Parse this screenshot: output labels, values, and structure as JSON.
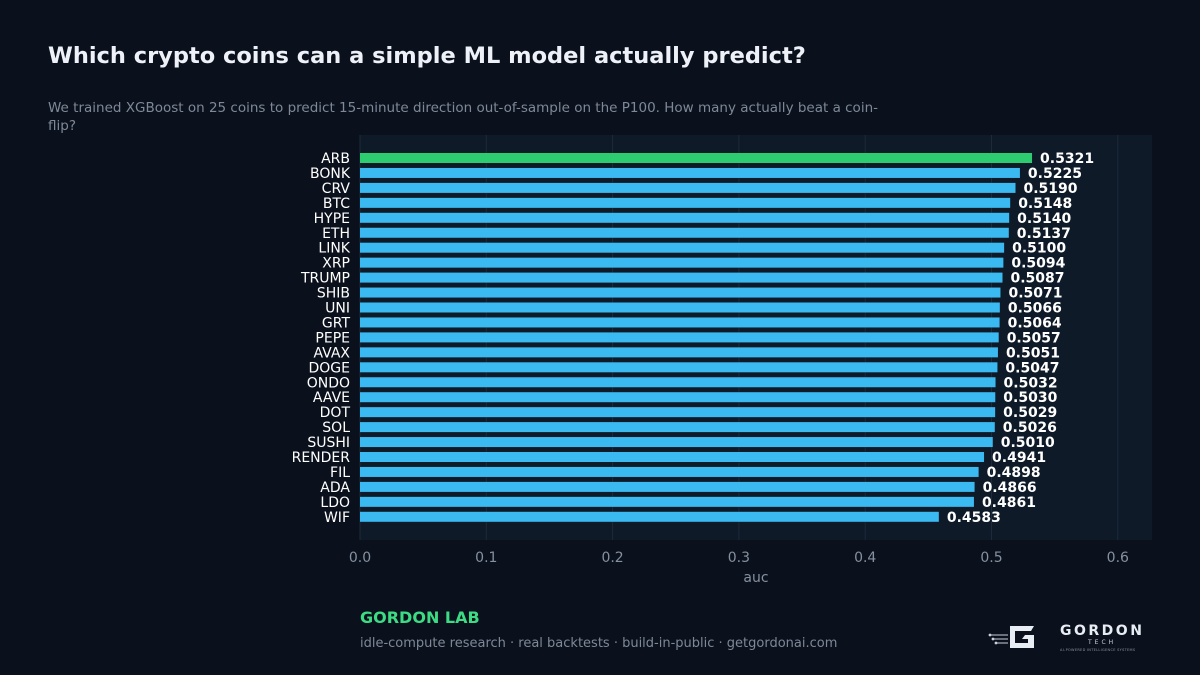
{
  "header": {
    "title": "Which crypto coins can a simple ML model actually predict?",
    "subtitle": "We trained XGBoost on 25 coins to predict 15-minute direction out-of-sample on the P100. How many actually beat a coin-flip?"
  },
  "chart_data": {
    "type": "bar",
    "orientation": "horizontal",
    "title": "",
    "xlabel": "auc",
    "ylabel": "",
    "xlim": [
      0,
      0.628
    ],
    "x_ticks": [
      "0.0",
      "0.1",
      "0.2",
      "0.3",
      "0.4",
      "0.5",
      "0.6"
    ],
    "x_tick_values": [
      0,
      0.1,
      0.2,
      0.3,
      0.4,
      0.5,
      0.6
    ],
    "grid": "vertical",
    "categories": [
      "ARB",
      "BONK",
      "CRV",
      "BTC",
      "HYPE",
      "ETH",
      "LINK",
      "XRP",
      "TRUMP",
      "SHIB",
      "UNI",
      "GRT",
      "PEPE",
      "AVAX",
      "DOGE",
      "ONDO",
      "AAVE",
      "DOT",
      "SOL",
      "SUSHI",
      "RENDER",
      "FIL",
      "ADA",
      "LDO",
      "WIF"
    ],
    "values": [
      0.5321,
      0.5225,
      0.519,
      0.5148,
      0.514,
      0.5137,
      0.51,
      0.5094,
      0.5087,
      0.5071,
      0.5066,
      0.5064,
      0.5057,
      0.5051,
      0.5047,
      0.5032,
      0.503,
      0.5029,
      0.5026,
      0.501,
      0.4941,
      0.4898,
      0.4866,
      0.4861,
      0.4583
    ],
    "value_labels": [
      "0.5321",
      "0.5225",
      "0.5190",
      "0.5148",
      "0.5140",
      "0.5137",
      "0.5100",
      "0.5094",
      "0.5087",
      "0.5071",
      "0.5066",
      "0.5064",
      "0.5057",
      "0.5051",
      "0.5047",
      "0.5032",
      "0.5030",
      "0.5029",
      "0.5026",
      "0.5010",
      "0.4941",
      "0.4898",
      "0.4866",
      "0.4861",
      "0.4583"
    ],
    "highlight_index": 0,
    "colors": {
      "highlight": "#2ecc71",
      "bar": "#3bbaf2",
      "plot_background": "#0e1a28",
      "grid": "#1c2a3a",
      "tick_text": "#8590a0",
      "label_text": "#ffffff"
    }
  },
  "footer": {
    "lab_name": "GORDON LAB",
    "tagline": "idle-compute research · real backtests · build-in-public · getgordonai.com",
    "logo_word": "GORDON",
    "logo_sub": "TECH",
    "logo_tagline": "AI-POWERED INTELLIGENCE SYSTEMS"
  }
}
